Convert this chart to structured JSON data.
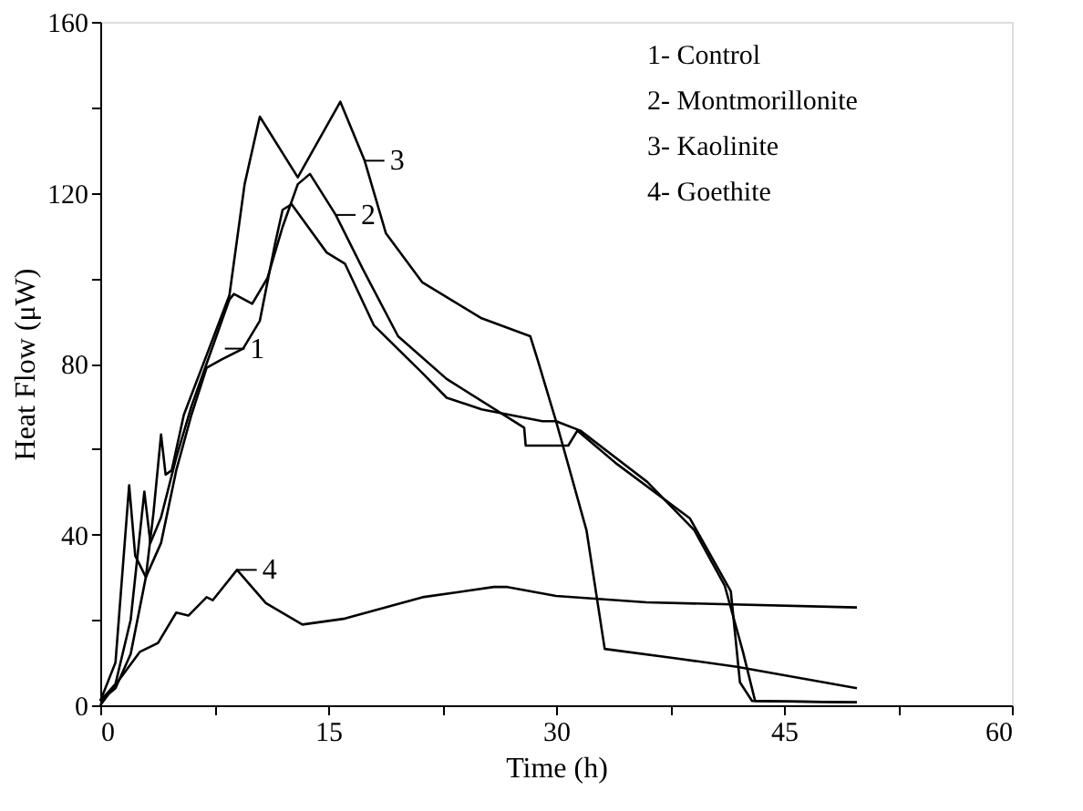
{
  "chart_data": {
    "type": "line",
    "xlabel": "Time (h)",
    "ylabel": "Heat Flow (μW)",
    "xlim": [
      0,
      60
    ],
    "ylim": [
      0,
      160
    ],
    "xticks": [
      0,
      {
        "value": 7.5,
        "label": null
      },
      15,
      {
        "value": 22.5,
        "label": null
      },
      30,
      {
        "value": 37.5,
        "label": null
      },
      45,
      {
        "value": 52.5,
        "label": null
      },
      60
    ],
    "yticks": [
      0,
      {
        "value": 20,
        "label": null
      },
      40,
      {
        "value": 60,
        "label": null
      },
      80,
      {
        "value": 100,
        "label": null
      },
      120,
      {
        "value": 140,
        "label": null
      },
      160
    ],
    "grid": false,
    "marker": "none",
    "line_style": "solid",
    "series": [
      {
        "color": "#000000",
        "x": [
          0,
          1,
          1.9,
          2.3,
          3,
          4,
          5,
          6,
          7,
          8,
          9.4,
          10.5,
          11.5,
          12.0,
          12.6,
          14.9,
          16.1,
          18,
          21.2,
          22.8,
          25.1,
          29.1,
          30,
          31.6,
          36,
          39.1,
          41.1,
          42.3,
          43.1,
          49.8
        ],
        "values": [
          1,
          10,
          51.5,
          35,
          30,
          38,
          55,
          68,
          79,
          81,
          83.5,
          90,
          108,
          116,
          117.3,
          106,
          103.4,
          89,
          77.8,
          72,
          69.3,
          66.5,
          66.5,
          64.3,
          52.3,
          41,
          28,
          12.5,
          1,
          0.7
        ]
      },
      {
        "color": "#000000",
        "x": [
          0,
          1,
          2,
          2.9,
          3.3,
          4,
          5,
          6,
          7,
          8.5,
          8.8,
          10,
          11,
          12,
          13,
          13.8,
          15.5,
          17.3,
          19.6,
          22.8,
          27.9,
          28,
          30.8,
          31.4,
          34,
          38.8,
          41.5,
          42.1,
          42.9,
          49.8
        ],
        "values": [
          1,
          5,
          20,
          50,
          38,
          44,
          58,
          70,
          80,
          95,
          96.3,
          94,
          100,
          112,
          122,
          124.4,
          114.8,
          102,
          86.4,
          76.4,
          65,
          60.8,
          60.8,
          64.3,
          56.5,
          43.8,
          26.7,
          5.4,
          1,
          0.7
        ]
      },
      {
        "color": "#000000",
        "x": [
          0,
          1,
          2,
          3,
          3.5,
          4.0,
          4.3,
          4.7,
          5.5,
          7,
          8.5,
          9.5,
          10.5,
          13.0,
          15.8,
          17.4,
          18.8,
          21.2,
          25.1,
          28.3,
          28.8,
          30,
          32,
          33.2,
          37.9,
          41.9,
          49.8
        ],
        "values": [
          1,
          4,
          12,
          30,
          45,
          63.4,
          54,
          55,
          68,
          82,
          96,
          122,
          137.8,
          123.6,
          141.3,
          127.5,
          110.5,
          99,
          90.6,
          86.4,
          80.7,
          66.5,
          41,
          13.2,
          11,
          9,
          4
        ]
      },
      {
        "color": "#000000",
        "x": [
          0,
          2.6,
          3.8,
          5,
          5.8,
          7,
          7.4,
          9.0,
          10.9,
          13.3,
          16.1,
          21.2,
          25.9,
          26.8,
          30,
          35.95,
          49.8
        ],
        "values": [
          0,
          12.5,
          14.6,
          21.7,
          21,
          25.3,
          24.6,
          31.7,
          23.9,
          18.9,
          20.3,
          25.3,
          27.7,
          27.7,
          25.6,
          24.1,
          22.9
        ]
      }
    ],
    "annotations": [
      {
        "text": "1",
        "x": 8.2,
        "y": 83.5
      },
      {
        "text": "2",
        "x": 15.5,
        "y": 114.8
      },
      {
        "text": "3",
        "x": 17.4,
        "y": 127.5
      },
      {
        "text": "4",
        "x": 9.0,
        "y": 31.7
      },
      "1- Control",
      "2- Montmorillonite",
      "3- Kaolinite",
      "4- Goethite"
    ]
  }
}
